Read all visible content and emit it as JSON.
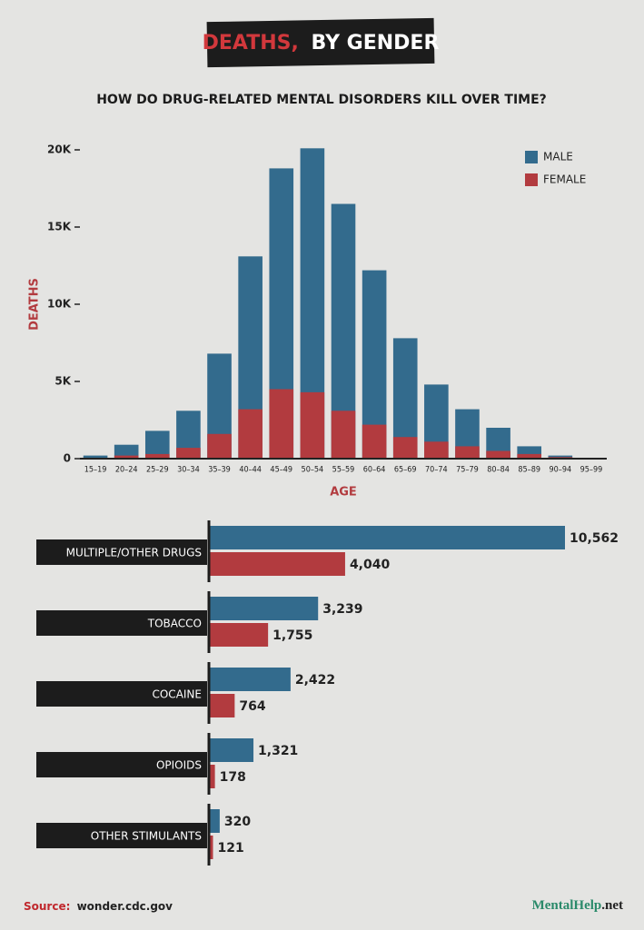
{
  "header": {
    "title_highlight": "DEATHS,",
    "title_rest": "BY GENDER"
  },
  "chart_data": [
    {
      "type": "bar",
      "title": "HOW DO DRUG-RELATED MENTAL DISORDERS KILL OVER TIME?",
      "overlap": true,
      "x_label": "AGE",
      "y_label": "DEATHS",
      "categories": [
        "15–19",
        "20–24",
        "25–29",
        "30–34",
        "35–39",
        "40–44",
        "45–49",
        "50–54",
        "55–59",
        "60–64",
        "65–69",
        "70–74",
        "75–79",
        "80–84",
        "85–89",
        "90–94",
        "95–99"
      ],
      "series": [
        {
          "name": "MALE",
          "color": "#336b8d",
          "values": [
            200,
            900,
            1800,
            3100,
            6800,
            13100,
            18800,
            20100,
            16500,
            12200,
            7800,
            4800,
            3200,
            2000,
            800,
            200,
            50
          ]
        },
        {
          "name": "FEMALE",
          "color": "#b23b3f",
          "values": [
            50,
            200,
            300,
            700,
            1600,
            3200,
            4500,
            4300,
            3100,
            2200,
            1400,
            1100,
            800,
            500,
            300,
            100,
            20
          ]
        }
      ],
      "ylim": [
        0,
        20000
      ],
      "yticks": [
        0,
        {
          "value": 5000,
          "label": "5K"
        },
        {
          "value": 10000,
          "label": "10K"
        },
        {
          "value": 15000,
          "label": "15K"
        },
        {
          "value": 20000,
          "label": "20K"
        }
      ],
      "legend": "top-right"
    },
    {
      "type": "bar",
      "orientation": "horizontal",
      "categories": [
        "MULTIPLE/OTHER DRUGS",
        "TOBACCO",
        "COCAINE",
        "OPIOIDS",
        "OTHER STIMULANTS"
      ],
      "series": [
        {
          "name": "MALE",
          "color": "#336b8d",
          "values": [
            10562,
            3239,
            2422,
            1321,
            320
          ],
          "value_labels": [
            "10,562",
            "3,239",
            "2,422",
            "1,321",
            "320"
          ]
        },
        {
          "name": "FEMALE",
          "color": "#b23b3f",
          "values": [
            4040,
            1755,
            764,
            178,
            121
          ],
          "value_labels": [
            "4,040",
            "1,755",
            "764",
            "178",
            "121"
          ]
        }
      ]
    }
  ],
  "footer": {
    "source_label": "Source:",
    "source": "wonder.cdc.gov",
    "brand": "MentalHelp",
    "brand_suffix": ".net"
  }
}
